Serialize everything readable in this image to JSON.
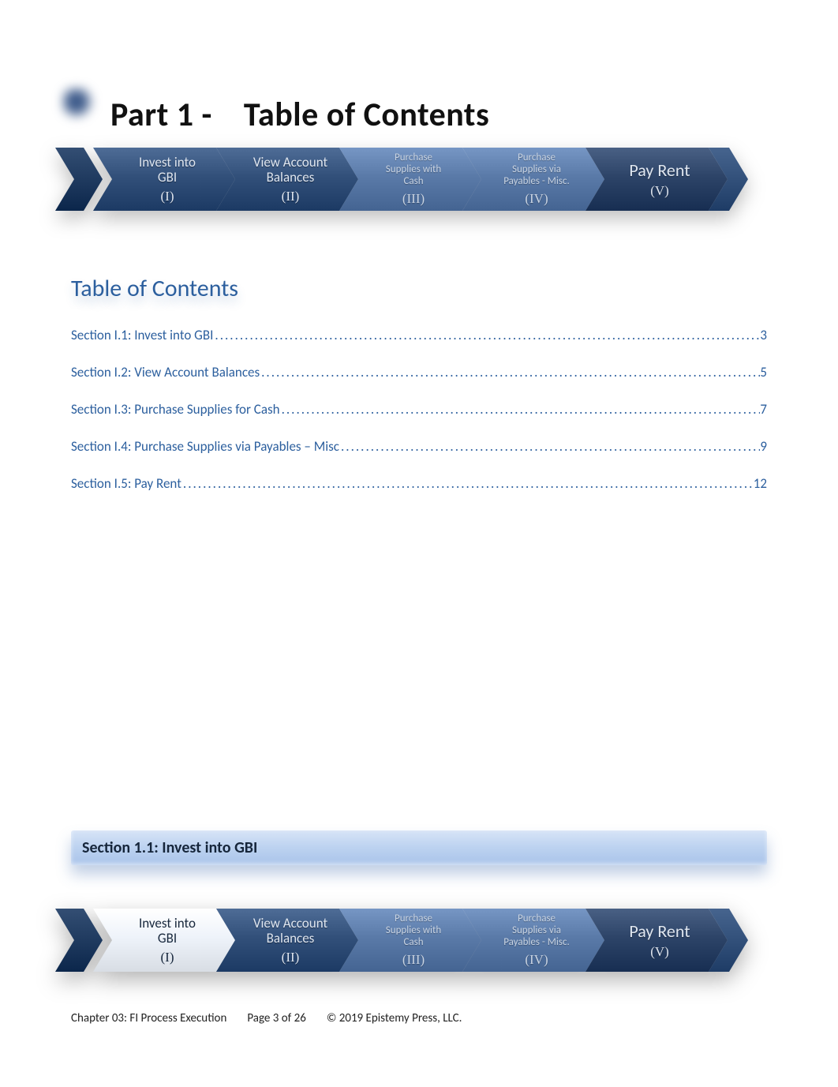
{
  "heading": {
    "part_label": "Part 1 -",
    "title": "Table of Contents"
  },
  "chevron_colors": {
    "tail_fill": "#1f3a5f",
    "dark_fill": "#2d4468",
    "mid_fill": "#32507a",
    "pale_fill": "#5a7aa8",
    "active_fill": "#eef3fa",
    "active_text": "#16263b",
    "dark_text": "#dfe6f0",
    "pale_text": "#c9d4e3"
  },
  "chevron_top": {
    "items": [
      {
        "line1": "Invest into",
        "line2": "GBI",
        "line3": "",
        "num": "(I)",
        "style": "dark",
        "size": "normal"
      },
      {
        "line1": "View Account",
        "line2": "Balances",
        "line3": "",
        "num": "(II)",
        "style": "dark",
        "size": "normal"
      },
      {
        "line1": "Purchase",
        "line2": "Supplies with",
        "line3": "Cash",
        "num": "(III)",
        "style": "pale",
        "size": "small"
      },
      {
        "line1": "Purchase",
        "line2": "Supplies via",
        "line3": "Payables - Misc.",
        "num": "(IV)",
        "style": "pale",
        "size": "small"
      },
      {
        "line1": "Pay Rent",
        "line2": "",
        "line3": "",
        "num": "(V)",
        "style": "dark",
        "size": "large"
      }
    ]
  },
  "toc": {
    "heading": "Table of Contents",
    "entries": [
      {
        "title": "Section I.1: Invest into GBI",
        "page": "3"
      },
      {
        "title": "Section I.2: View Account Balances",
        "page": "5"
      },
      {
        "title": "Section I.3: Purchase Supplies for Cash",
        "page": "7"
      },
      {
        "title": "Section I.4: Purchase Supplies via Payables – Misc",
        "page": "9"
      },
      {
        "title": "Section I.5: Pay Rent",
        "page": "12"
      }
    ]
  },
  "section_banner": "Section 1.1: Invest into GBI",
  "chevron_bottom": {
    "items": [
      {
        "line1": "Invest into",
        "line2": "GBI",
        "line3": "",
        "num": "(I)",
        "style": "active",
        "size": "normal"
      },
      {
        "line1": "View Account",
        "line2": "Balances",
        "line3": "",
        "num": "(II)",
        "style": "dark",
        "size": "normal"
      },
      {
        "line1": "Purchase",
        "line2": "Supplies with",
        "line3": "Cash",
        "num": "(III)",
        "style": "pale",
        "size": "small"
      },
      {
        "line1": "Purchase",
        "line2": "Supplies via",
        "line3": "Payables - Misc.",
        "num": "(IV)",
        "style": "pale",
        "size": "small"
      },
      {
        "line1": "Pay Rent",
        "line2": "",
        "line3": "",
        "num": "(V)",
        "style": "dark",
        "size": "large"
      }
    ]
  },
  "footer": {
    "chapter": "Chapter 03: FI Process Execution",
    "page": "Page 3 of 26",
    "copyright": "© 2019 Epistemy Press, LLC."
  }
}
